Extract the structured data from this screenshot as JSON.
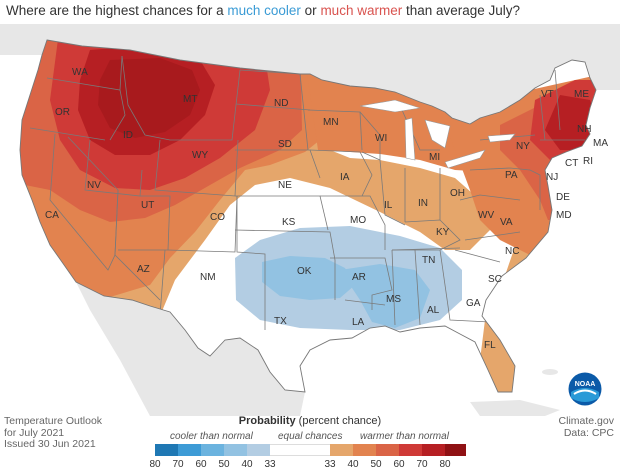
{
  "title": {
    "prefix": "Where are the highest chances for a ",
    "cool": "much cooler",
    "middle": " or ",
    "warm": "much warmer",
    "suffix": " than average July?"
  },
  "footer_left": {
    "line1": "Temperature Outlook",
    "line2": "for July 2021",
    "line3": "Issued 30 Jun 2021"
  },
  "footer_right": {
    "line1": "Climate.gov",
    "line2": "Data: CPC"
  },
  "logo_text": "NOAA",
  "legend": {
    "title_bold": "Probability",
    "title_rest": " (percent chance)",
    "cooler": "cooler than normal",
    "equal": "equal chances",
    "warmer": "warmer than normal",
    "cool_colors": [
      "#1f78b4",
      "#3d9bd6",
      "#6bb3df",
      "#92c2e2",
      "#b3cde3"
    ],
    "warm_colors": [
      "#e5a66b",
      "#e2834f",
      "#da6446",
      "#cf3a37",
      "#b61f23",
      "#8f1114"
    ],
    "cool_ticks": [
      "80",
      "70",
      "60",
      "50",
      "40",
      "33"
    ],
    "warm_ticks": [
      "33",
      "40",
      "50",
      "60",
      "70",
      "80"
    ]
  },
  "states": [
    "WA",
    "OR",
    "CA",
    "NV",
    "ID",
    "MT",
    "WY",
    "UT",
    "AZ",
    "CO",
    "NM",
    "ND",
    "SD",
    "NE",
    "KS",
    "OK",
    "TX",
    "MN",
    "IA",
    "MO",
    "AR",
    "LA",
    "WI",
    "IL",
    "MS",
    "MI",
    "IN",
    "OH",
    "KY",
    "TN",
    "AL",
    "GA",
    "FL",
    "SC",
    "NC",
    "VA",
    "WV",
    "PA",
    "NY",
    "VT",
    "NH",
    "ME",
    "MA",
    "CT",
    "RI",
    "NJ",
    "DE",
    "MD"
  ],
  "outlook_areas": [
    {
      "category": "warmer",
      "probability": "40-50"
    },
    {
      "category": "warmer",
      "probability": "50-60"
    },
    {
      "category": "warmer",
      "probability": "60-70"
    },
    {
      "category": "warmer",
      "probability": "70-80"
    },
    {
      "category": "cooler",
      "probability": "33-40"
    },
    {
      "category": "cooler",
      "probability": "40-50"
    },
    {
      "category": "equal",
      "probability": "33"
    }
  ]
}
